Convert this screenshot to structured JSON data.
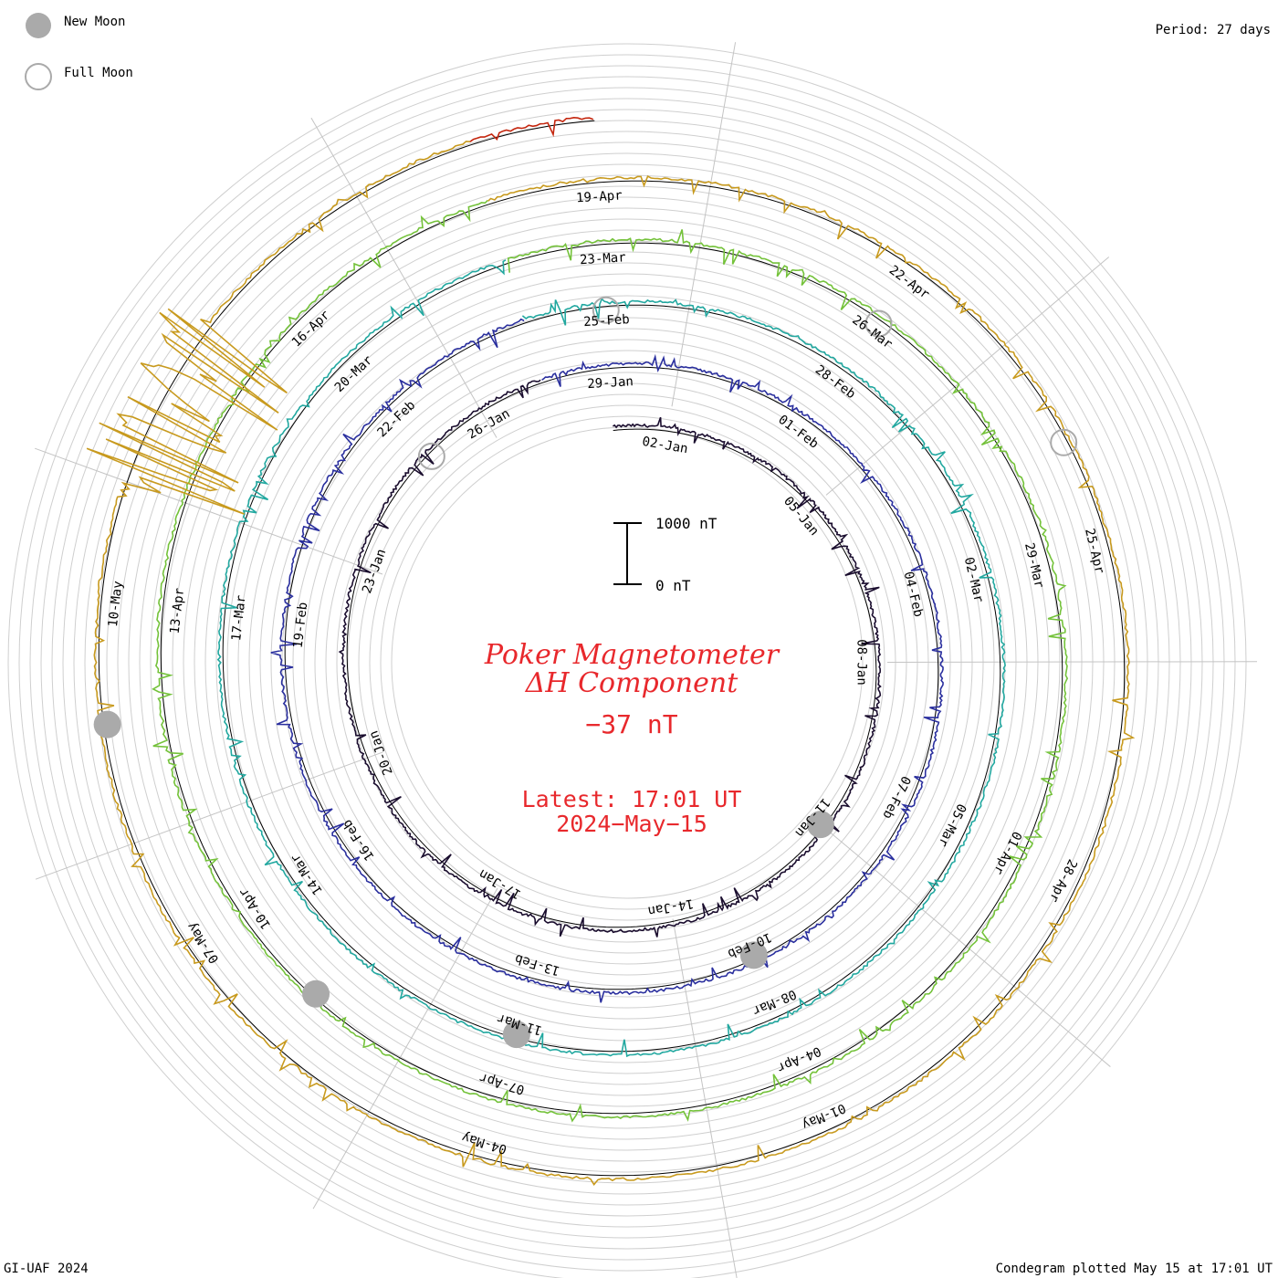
{
  "legend": {
    "new_moon": "New Moon",
    "full_moon": "Full Moon"
  },
  "period_label": "Period: 27 days",
  "footer_left": "GI-UAF 2024",
  "footer_right": "Condegram plotted May 15 at 17:01 UT",
  "title": {
    "line1": "Poker Magnetometer",
    "line2": "ΔH Component",
    "current_value": "−37 nT",
    "latest_time": "Latest: 17:01 UT",
    "latest_date": "2024−May−15"
  },
  "scale_bar": {
    "top_label": "1000 nT",
    "bottom_label": "0 nT"
  },
  "chart_data": {
    "type": "line",
    "title": "Poker Magnetometer ΔH Component",
    "period_days": 27,
    "scale_nT": [
      0,
      1000
    ],
    "latest_value_nT": -37,
    "series": [
      {
        "color": "#1a0d2e",
        "start": "2024-01-01",
        "end": "2024-01-27",
        "labels": [
          "02-Jan",
          "05-Jan",
          "08-Jan",
          "11-Jan",
          "14-Jan",
          "17-Jan",
          "20-Jan",
          "23-Jan",
          "26-Jan"
        ]
      },
      {
        "color": "#2a2f9e",
        "start": "2024-01-27",
        "end": "2024-02-23",
        "labels": [
          "29-Jan",
          "01-Feb",
          "04-Feb",
          "07-Feb",
          "10-Feb",
          "13-Feb",
          "16-Feb",
          "19-Feb",
          "22-Feb"
        ]
      },
      {
        "color": "#22a8a0",
        "start": "2024-02-23",
        "end": "2024-03-21",
        "labels": [
          "25-Feb",
          "28-Feb",
          "02-Mar",
          "05-Mar",
          "08-Mar",
          "11-Mar",
          "14-Mar",
          "17-Mar",
          "20-Mar"
        ]
      },
      {
        "color": "#74c23a",
        "start": "2024-03-21",
        "end": "2024-04-17",
        "labels": [
          "23-Mar",
          "26-Mar",
          "29-Mar",
          "01-Apr",
          "04-Apr",
          "07-Apr",
          "10-Apr",
          "13-Apr",
          "16-Apr"
        ]
      },
      {
        "color": "#c89a1e",
        "start": "2024-04-17",
        "end": "2024-05-14",
        "labels": [
          "19-Apr",
          "22-Apr",
          "25-Apr",
          "28-Apr",
          "01-May",
          "04-May",
          "07-May",
          "10-May"
        ]
      },
      {
        "color": "#c4260e",
        "start": "2024-05-14",
        "end": "2024-05-15",
        "labels": []
      }
    ],
    "moon_phases": [
      {
        "phase": "new",
        "date": "2024-01-11"
      },
      {
        "phase": "full",
        "date": "2024-01-25"
      },
      {
        "phase": "new",
        "date": "2024-02-09"
      },
      {
        "phase": "full",
        "date": "2024-02-24"
      },
      {
        "phase": "new",
        "date": "2024-03-10"
      },
      {
        "phase": "full",
        "date": "2024-03-25"
      },
      {
        "phase": "new",
        "date": "2024-04-08"
      },
      {
        "phase": "full",
        "date": "2024-04-23"
      },
      {
        "phase": "new",
        "date": "2024-05-08"
      }
    ],
    "storm_event": {
      "date": "2024-05-10",
      "description": ""
    }
  }
}
